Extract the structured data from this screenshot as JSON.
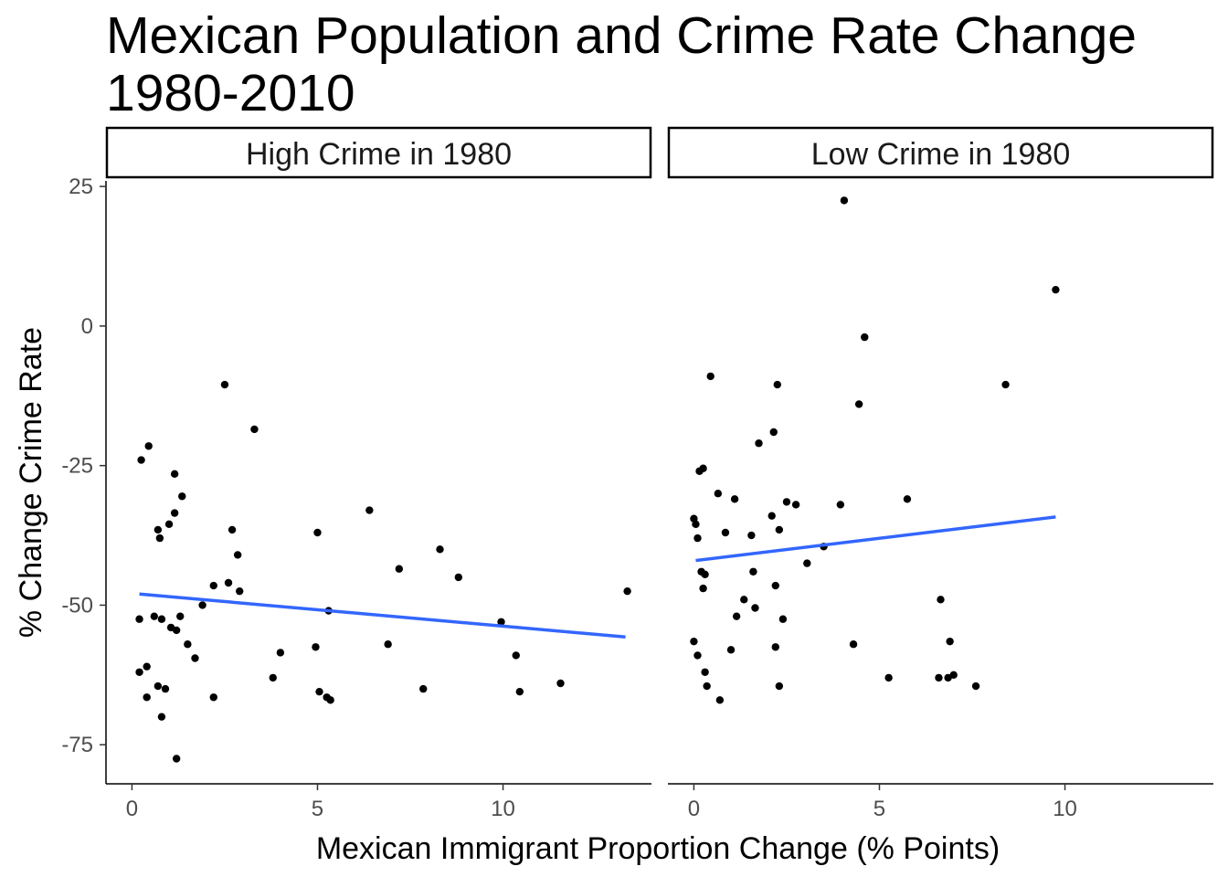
{
  "chart_data": {
    "type": "scatter",
    "title_lines": [
      "Mexican Population and Crime Rate Change",
      "1980-2010"
    ],
    "xlabel": "Mexican Immigrant Proportion Change (% Points)",
    "ylabel": "% Change Crime Rate",
    "xlim": [
      -0.7,
      14
    ],
    "ylim": [
      -82,
      26
    ],
    "x_ticks": [
      0,
      5,
      10
    ],
    "y_ticks": [
      25,
      0,
      -25,
      -50,
      -75
    ],
    "grid": false,
    "trend_color": "#3366FF",
    "point_color": "#000000",
    "panels": [
      {
        "label": "High Crime in 1980",
        "trend": {
          "x0": 0.2,
          "y0": -48,
          "x1": 13.3,
          "y1": -55.7
        },
        "points": [
          [
            0.2,
            -52.5
          ],
          [
            0.2,
            -62
          ],
          [
            0.25,
            -24
          ],
          [
            0.4,
            -61
          ],
          [
            0.4,
            -66.5
          ],
          [
            0.45,
            -21.5
          ],
          [
            0.6,
            -52
          ],
          [
            0.7,
            -36.5
          ],
          [
            0.75,
            -38
          ],
          [
            0.7,
            -64.5
          ],
          [
            0.8,
            -52.5
          ],
          [
            0.8,
            -70
          ],
          [
            0.9,
            -65
          ],
          [
            1.0,
            -35.5
          ],
          [
            1.05,
            -54
          ],
          [
            1.15,
            -33.5
          ],
          [
            1.15,
            -26.5
          ],
          [
            1.2,
            -54.5
          ],
          [
            1.2,
            -77.5
          ],
          [
            1.3,
            -52
          ],
          [
            1.35,
            -30.5
          ],
          [
            1.5,
            -57
          ],
          [
            1.7,
            -59.5
          ],
          [
            1.9,
            -50
          ],
          [
            2.2,
            -46.5
          ],
          [
            2.2,
            -66.5
          ],
          [
            2.5,
            -10.5
          ],
          [
            2.6,
            -46
          ],
          [
            2.7,
            -36.5
          ],
          [
            2.85,
            -41
          ],
          [
            2.9,
            -47.5
          ],
          [
            3.3,
            -18.5
          ],
          [
            3.8,
            -63
          ],
          [
            4.0,
            -58.5
          ],
          [
            4.95,
            -57.5
          ],
          [
            5.0,
            -37
          ],
          [
            5.05,
            -65.5
          ],
          [
            5.25,
            -66.5
          ],
          [
            5.3,
            -51
          ],
          [
            5.35,
            -67
          ],
          [
            6.4,
            -33
          ],
          [
            6.9,
            -57
          ],
          [
            7.2,
            -43.5
          ],
          [
            7.85,
            -65
          ],
          [
            8.3,
            -40
          ],
          [
            8.8,
            -45
          ],
          [
            9.95,
            -53
          ],
          [
            10.35,
            -59
          ],
          [
            10.45,
            -65.5
          ],
          [
            11.55,
            -64
          ],
          [
            13.35,
            -47.5
          ]
        ]
      },
      {
        "label": "Low Crime in 1980",
        "trend": {
          "x0": 0.05,
          "y0": -42,
          "x1": 9.75,
          "y1": -34.2
        },
        "points": [
          [
            0.0,
            -34.5
          ],
          [
            0.0,
            -56.5
          ],
          [
            0.05,
            -35.5
          ],
          [
            0.1,
            -38
          ],
          [
            0.1,
            -59
          ],
          [
            0.15,
            -26
          ],
          [
            0.2,
            -44
          ],
          [
            0.25,
            -25.5
          ],
          [
            0.25,
            -47
          ],
          [
            0.3,
            -44.5
          ],
          [
            0.3,
            -62
          ],
          [
            0.35,
            -64.5
          ],
          [
            0.45,
            -9
          ],
          [
            0.65,
            -30
          ],
          [
            0.7,
            -67
          ],
          [
            0.85,
            -37
          ],
          [
            1.0,
            -58
          ],
          [
            1.1,
            -31
          ],
          [
            1.15,
            -52
          ],
          [
            1.35,
            -49
          ],
          [
            1.55,
            -37.5
          ],
          [
            1.6,
            -44
          ],
          [
            1.65,
            -50.5
          ],
          [
            1.75,
            -21
          ],
          [
            2.1,
            -34
          ],
          [
            2.15,
            -19
          ],
          [
            2.2,
            -46.5
          ],
          [
            2.2,
            -57.5
          ],
          [
            2.25,
            -10.5
          ],
          [
            2.3,
            -36.5
          ],
          [
            2.3,
            -64.5
          ],
          [
            2.4,
            -52.5
          ],
          [
            2.5,
            -31.5
          ],
          [
            2.75,
            -32
          ],
          [
            3.05,
            -42.5
          ],
          [
            3.5,
            -39.5
          ],
          [
            3.95,
            -32
          ],
          [
            4.05,
            22.5
          ],
          [
            4.3,
            -57
          ],
          [
            4.45,
            -14
          ],
          [
            4.6,
            -2
          ],
          [
            5.25,
            -63
          ],
          [
            5.75,
            -31
          ],
          [
            6.6,
            -63
          ],
          [
            6.65,
            -49
          ],
          [
            6.85,
            -63
          ],
          [
            6.9,
            -56.5
          ],
          [
            7.0,
            -62.5
          ],
          [
            7.6,
            -64.5
          ],
          [
            8.4,
            -10.5
          ],
          [
            9.75,
            6.5
          ]
        ]
      }
    ]
  }
}
